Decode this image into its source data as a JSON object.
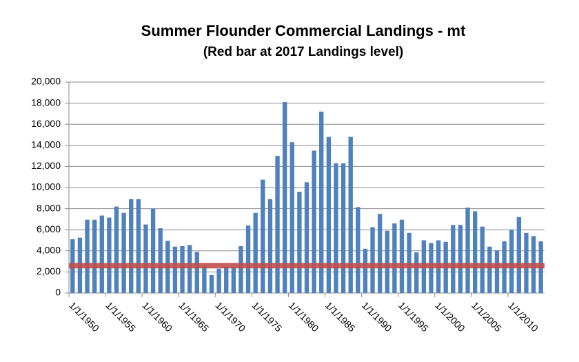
{
  "chart_data": {
    "type": "bar",
    "title": "Summer Flounder Commercial Landings - mt",
    "subtitle": "(Red bar at 2017 Landings level)",
    "categories": [
      "1/1/1950",
      null,
      null,
      null,
      null,
      "1/1/1955",
      null,
      null,
      null,
      null,
      "1/1/1960",
      null,
      null,
      null,
      null,
      "1/1/1965",
      null,
      null,
      null,
      null,
      "1/1/1970",
      null,
      null,
      null,
      null,
      "1/1/1975",
      null,
      null,
      null,
      null,
      "1/1/1980",
      null,
      null,
      null,
      null,
      "1/1/1985",
      null,
      null,
      null,
      null,
      "1/1/1990",
      null,
      null,
      null,
      null,
      "1/1/1995",
      null,
      null,
      null,
      null,
      "1/1/2000",
      null,
      null,
      null,
      null,
      "1/1/2005",
      null,
      null,
      null,
      null,
      "1/1/2010",
      null,
      null,
      null,
      null
    ],
    "values": [
      5100,
      5250,
      6950,
      6950,
      7350,
      7150,
      8200,
      7600,
      8900,
      8900,
      6500,
      8000,
      6150,
      4950,
      4400,
      4450,
      4550,
      3900,
      2600,
      1700,
      2300,
      2500,
      2500,
      4450,
      6400,
      7600,
      10750,
      8900,
      13000,
      18100,
      14300,
      9600,
      10500,
      13500,
      17200,
      14800,
      12300,
      12300,
      14800,
      8150,
      4200,
      6250,
      7500,
      5900,
      6600,
      6950,
      5700,
      3850,
      5000,
      4750,
      5000,
      4850,
      6450,
      6450,
      8100,
      7750,
      6300,
      4400,
      4050,
      4900,
      6000,
      7200,
      5700,
      5400,
      4900
    ],
    "color": "#4f81bd",
    "reference_value": 2600,
    "reference_color": "#c0504d",
    "ylim": [
      0,
      20000
    ],
    "yticks": [
      0,
      {
        "value": 2000,
        "label": "2,000"
      },
      {
        "value": 4000,
        "label": "4,000"
      },
      {
        "value": 6000,
        "label": "6,000"
      },
      {
        "value": 8000,
        "label": "8,000"
      },
      {
        "value": 10000,
        "label": "10,000"
      },
      {
        "value": 12000,
        "label": "12,000"
      },
      {
        "value": 14000,
        "label": "14,000"
      },
      {
        "value": 16000,
        "label": "16,000"
      },
      {
        "value": 18000,
        "label": "18,000"
      },
      {
        "value": 20000,
        "label": "20,000"
      }
    ],
    "grid": true
  }
}
